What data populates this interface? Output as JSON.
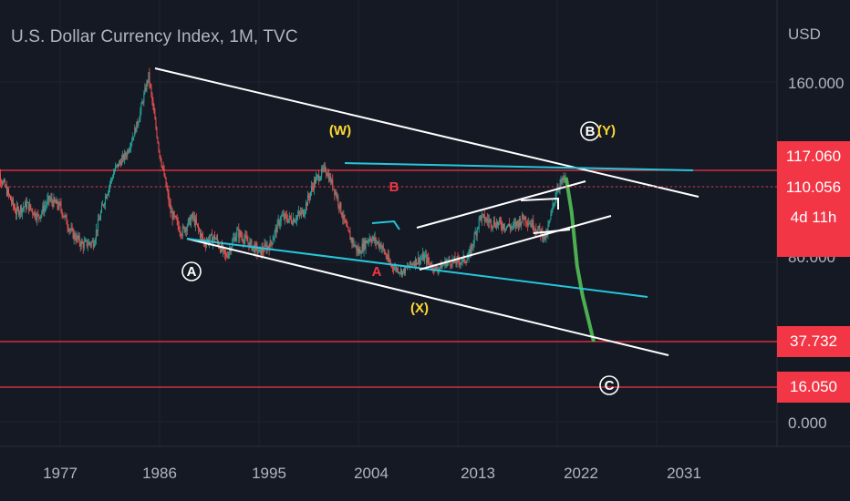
{
  "header": {
    "title": "U.S. Dollar Currency Index, 1M, TVC",
    "currency": "USD"
  },
  "price_axis": {
    "labels": [
      "160.000",
      "80.000",
      "0.000"
    ]
  },
  "price_badges": {
    "upper_line": "117.060",
    "current_price": "110.056",
    "countdown": "4d 11h",
    "target_1": "37.732",
    "target_2": "16.050"
  },
  "time_axis": {
    "labels": [
      "1977",
      "1986",
      "1995",
      "2004",
      "2013",
      "2022",
      "2031"
    ]
  },
  "wave_labels": {
    "A_circle": "A",
    "B_circle": "B",
    "C_circle": "C",
    "W": "(W)",
    "X": "(X)",
    "Y": "(Y)",
    "A": "A",
    "B": "B"
  },
  "colors": {
    "background": "#151924",
    "up_candle": "#26a69a",
    "down_candle": "#ef5350",
    "projection": "#4caf50",
    "trendline": "#ffffff",
    "channel_line": "#26c6da",
    "horizontal_level": "#f23645",
    "wave_label_yellow": "#fdd835",
    "wave_label_red": "#f23645"
  },
  "chart_data": {
    "type": "line",
    "title": "U.S. Dollar Currency Index, 1M, TVC",
    "xlabel": "",
    "ylabel": "USD",
    "xlim": [
      1970,
      2038
    ],
    "x_ticks": [
      1977,
      1986,
      1995,
      2004,
      2013,
      2022,
      2031
    ],
    "y_ticks": [
      0,
      80,
      160
    ],
    "series": [
      {
        "style": "candles",
        "x": [
          1971,
          1972,
          1973,
          1974,
          1975,
          1976,
          1977,
          1978,
          1979,
          1980,
          1981,
          1982,
          1983,
          1984,
          1985,
          1986,
          1987,
          1988,
          1989,
          1990,
          1991,
          1992,
          1993,
          1994,
          1995,
          1996,
          1997,
          1998,
          1999,
          2000,
          2001,
          2002,
          2003,
          2004,
          2005,
          2006,
          2007,
          2008,
          2009,
          2010,
          2011,
          2012,
          2013,
          2014,
          2015,
          2016,
          2017,
          2018,
          2019,
          2020,
          2021,
          2022,
          2022.8
        ],
        "y": [
          120,
          110,
          100,
          103,
          98,
          105,
          102,
          92,
          87,
          88,
          105,
          118,
          125,
          140,
          163,
          125,
          100,
          92,
          98,
          88,
          90,
          82,
          92,
          88,
          84,
          87,
          98,
          97,
          100,
          112,
          118,
          107,
          92,
          84,
          90,
          87,
          78,
          75,
          80,
          82,
          76,
          80,
          80,
          82,
          98,
          96,
          95,
          94,
          98,
          94,
          90,
          110,
          114
        ]
      },
      {
        "style": "projection",
        "x": [
          2022.8,
          2023.3,
          2023.8,
          2024.3,
          2024.8,
          2025.3
        ],
        "y": [
          114,
          100,
          78,
          62,
          50,
          37.7
        ]
      }
    ],
    "horizontal_levels": [
      117.06,
      110.056,
      37.732,
      16.05
    ]
  }
}
